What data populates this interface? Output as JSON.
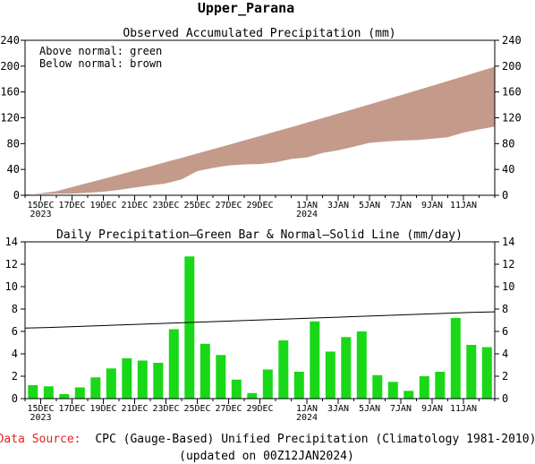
{
  "page_title": "Upper_Parana",
  "footer": {
    "source_label": "Data Source:",
    "source_text": "CPC (Gauge-Based) Unified Precipitation (Climatology 1981-2010)",
    "updated": "(updated on 00Z12JAN2024)"
  },
  "colors": {
    "deficit_fill": "#c49a8a",
    "bar_fill": "#18d818",
    "normal_line": "#000000",
    "source_label": "#e02020"
  },
  "chart_data": [
    {
      "type": "area",
      "title": "Observed Accumulated Precipitation (mm)",
      "legend": [
        "Above normal: green",
        "Below normal: brown"
      ],
      "legend_position": "top-left",
      "grid": false,
      "xlim": [
        0,
        30
      ],
      "ylim": [
        0,
        240
      ],
      "yticks": [
        0,
        40,
        80,
        120,
        160,
        200,
        240
      ],
      "xtick_labels": [
        {
          "day": 1,
          "label": "15DEC",
          "sub": "2023"
        },
        {
          "day": 3,
          "label": "17DEC"
        },
        {
          "day": 5,
          "label": "19DEC"
        },
        {
          "day": 7,
          "label": "21DEC"
        },
        {
          "day": 9,
          "label": "23DEC"
        },
        {
          "day": 11,
          "label": "25DEC"
        },
        {
          "day": 13,
          "label": "27DEC"
        },
        {
          "day": 15,
          "label": "29DEC"
        },
        {
          "day": 18,
          "label": "1JAN",
          "sub": "2024"
        },
        {
          "day": 20,
          "label": "3JAN"
        },
        {
          "day": 22,
          "label": "5JAN"
        },
        {
          "day": 24,
          "label": "7JAN"
        },
        {
          "day": 26,
          "label": "9JAN"
        },
        {
          "day": 28,
          "label": "11JAN"
        }
      ],
      "series": [
        {
          "values": [
            0,
            6.3,
            12.6,
            19,
            25.4,
            31.8,
            38.3,
            44.8,
            51.4,
            58,
            64.7,
            71.4,
            78.1,
            84.9,
            91.7,
            98.6,
            105.5,
            112.5,
            119.5,
            126.5,
            133.6,
            140.7,
            147.9,
            155.1,
            162.3,
            169.6,
            176.9,
            184.3,
            191.7,
            199.1
          ]
        },
        {
          "values": [
            1.2,
            2.3,
            2.7,
            3.7,
            5.6,
            8.3,
            11.9,
            15.3,
            18.5,
            24.7,
            37.4,
            42.3,
            46.2,
            47.9,
            48.4,
            51,
            56.2,
            58.6,
            65.5,
            69.7,
            75.2,
            81.2,
            83.3,
            84.8,
            85.5,
            87.5,
            89.9,
            97.1,
            101.9,
            106.5
          ]
        }
      ]
    },
    {
      "type": "bar",
      "title": "Daily Precipitation—Green Bar & Normal—Solid Line (mm/day)",
      "grid": false,
      "xlim": [
        0,
        30
      ],
      "ylim": [
        0,
        14
      ],
      "yticks": [
        0,
        2,
        4,
        6,
        8,
        10,
        12,
        14
      ],
      "values": [
        1.2,
        1.1,
        0.4,
        1.0,
        1.9,
        2.7,
        3.6,
        3.4,
        3.2,
        6.2,
        12.7,
        4.9,
        3.9,
        1.7,
        0.5,
        2.6,
        5.2,
        2.4,
        6.9,
        4.2,
        5.5,
        6.0,
        2.1,
        1.5,
        0.7,
        2.0,
        2.4,
        7.2,
        4.8,
        4.6
      ],
      "normal": [
        6.3,
        6.35,
        6.4,
        6.45,
        6.5,
        6.55,
        6.6,
        6.65,
        6.7,
        6.75,
        6.8,
        6.85,
        6.9,
        6.95,
        7.0,
        7.05,
        7.1,
        7.15,
        7.2,
        7.25,
        7.3,
        7.35,
        7.4,
        7.45,
        7.5,
        7.55,
        7.6,
        7.65,
        7.7,
        7.75
      ]
    }
  ]
}
